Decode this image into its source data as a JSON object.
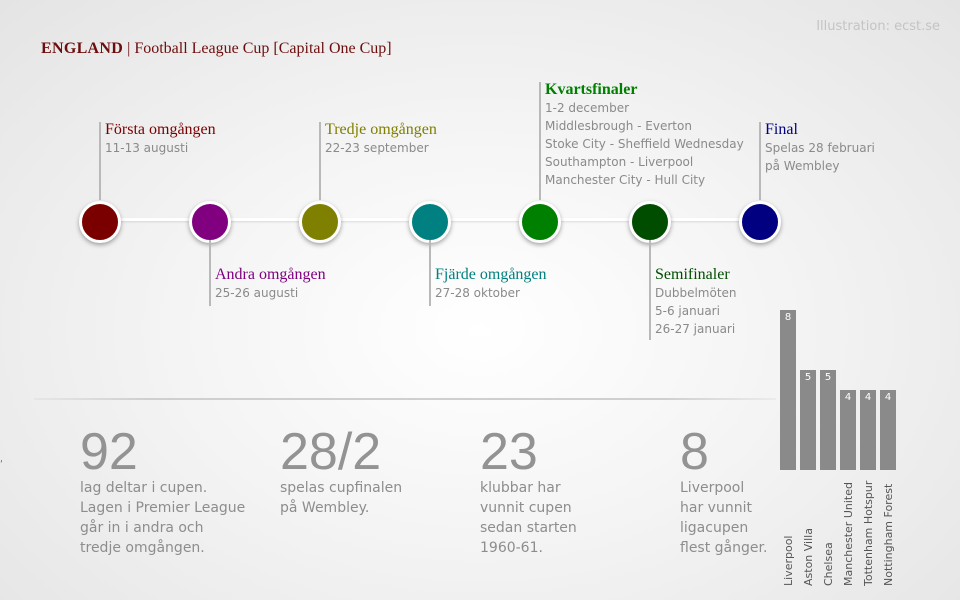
{
  "credit": "Illustration: ecst.se",
  "header": {
    "country": "ENGLAND",
    "separator": "|",
    "title": "Football League Cup [Capital One Cup]"
  },
  "stages": [
    {
      "title": "Första omgången",
      "lines": [
        "11-13 augusti"
      ],
      "color": "#7a0000"
    },
    {
      "title": "Andra omgången",
      "lines": [
        "25-26 augusti"
      ],
      "color": "#800080"
    },
    {
      "title": "Tredje omgången",
      "lines": [
        "22-23 september"
      ],
      "color": "#7f7f00"
    },
    {
      "title": "Fjärde omgången",
      "lines": [
        "27-28 oktober"
      ],
      "color": "#008080"
    },
    {
      "title": "Kvartsfinaler",
      "lines": [
        "1-2 december",
        "Middlesbrough - Everton",
        "Stoke City - Sheffield Wednesday",
        "Southampton - Liverpool",
        "Manchester City - Hull City"
      ],
      "color": "#008000"
    },
    {
      "title": "Semifinaler",
      "lines": [
        "Dubbelmöten",
        "5-6 januari",
        "26-27 januari"
      ],
      "color": "#004d00"
    },
    {
      "title": "Final",
      "lines": [
        "Spelas 28 februari",
        "på Wembley"
      ],
      "color": "#000080"
    }
  ],
  "stats": [
    {
      "number": "92",
      "lines": [
        "lag deltar i cupen.",
        "Lagen i Premier League",
        "går in i andra och",
        "tredje omgången."
      ]
    },
    {
      "number": "28/2",
      "lines": [
        "spelas cupfinalen",
        "på Wembley."
      ]
    },
    {
      "number": "23",
      "lines": [
        "klubbar har",
        "vunnit cupen",
        "sedan starten",
        "1960-61."
      ]
    },
    {
      "number": "8",
      "lines": [
        "Liverpool",
        "har vunnit",
        "ligacupen",
        "flest gånger."
      ]
    }
  ],
  "chart_data": {
    "type": "bar",
    "categories": [
      "Liverpool",
      "Aston Villa",
      "Chelsea",
      "Manchester United",
      "Tottenham Hotspur",
      "Nottingham Forest"
    ],
    "values": [
      8,
      5,
      5,
      4,
      4,
      4
    ],
    "data_labels": [
      "8",
      "5",
      "5",
      "4",
      "4",
      "4"
    ],
    "bar_color": "#8a8a8a",
    "orientation": "vertical",
    "category_labels": "rotated, below bars"
  },
  "margin_mark": "ʹ"
}
